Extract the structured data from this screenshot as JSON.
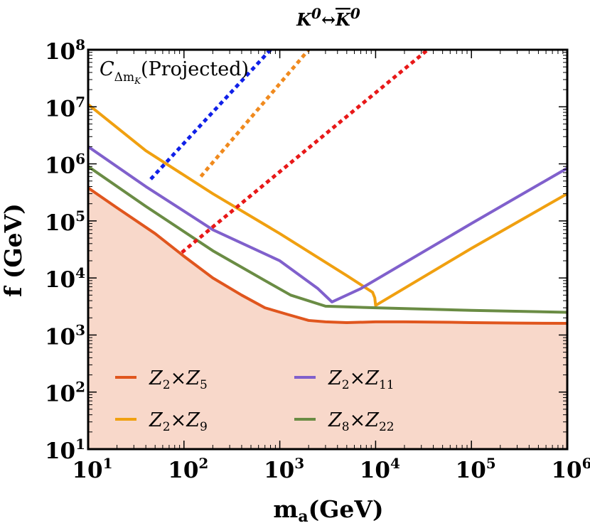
{
  "chart_data": {
    "type": "line",
    "title": "K0↔K̄0",
    "xlabel": "ma(GeV)",
    "ylabel": "f (GeV)",
    "xscale": "log",
    "yscale": "log",
    "xlim": [
      10,
      1000000
    ],
    "ylim": [
      10,
      100000000
    ],
    "x_ticks": [
      {
        "base": "10",
        "exp": "1",
        "value": 10
      },
      {
        "base": "10",
        "exp": "2",
        "value": 100
      },
      {
        "base": "10",
        "exp": "3",
        "value": 1000
      },
      {
        "base": "10",
        "exp": "4",
        "value": 10000
      },
      {
        "base": "10",
        "exp": "5",
        "value": 100000
      },
      {
        "base": "10",
        "exp": "6",
        "value": 1000000
      }
    ],
    "y_ticks": [
      {
        "base": "10",
        "exp": "1",
        "value": 10
      },
      {
        "base": "10",
        "exp": "2",
        "value": 100
      },
      {
        "base": "10",
        "exp": "3",
        "value": 1000
      },
      {
        "base": "10",
        "exp": "4",
        "value": 10000
      },
      {
        "base": "10",
        "exp": "5",
        "value": 100000
      },
      {
        "base": "10",
        "exp": "6",
        "value": 1000000
      },
      {
        "base": "10",
        "exp": "7",
        "value": 10000000
      },
      {
        "base": "10",
        "exp": "8",
        "value": 100000000
      }
    ],
    "annotation": {
      "text": "C",
      "subscript": "Δm",
      "subsub": "K",
      "suffix": "(Projected)"
    },
    "legend_placement": "bottom-left",
    "fill_color": "#f8d8ca",
    "series": [
      {
        "name": "Z2×Z5",
        "legend": {
          "a": "Z",
          "a_sub": "2",
          "b": "Z",
          "b_sub": "5"
        },
        "color": "#e0561e",
        "x": [
          10,
          20,
          50,
          100,
          200,
          400,
          700,
          1200,
          2000,
          3000,
          5000,
          10000,
          20000,
          50000,
          100000,
          300000,
          1000000
        ],
        "y": [
          380000,
          170000,
          60000,
          24000,
          10000,
          5000,
          3000,
          2300,
          1800,
          1700,
          1650,
          1700,
          1700,
          1680,
          1650,
          1620,
          1600
        ]
      },
      {
        "name": "Z2×Z9",
        "legend": {
          "a": "Z",
          "a_sub": "2",
          "b": "Z",
          "b_sub": "9"
        },
        "color": "#f0a010",
        "x": [
          10,
          40,
          200,
          1000,
          5000,
          9300,
          9800,
          10000,
          100000,
          1000000
        ],
        "y": [
          11000000,
          1700000,
          300000,
          60000,
          11000,
          5600,
          4500,
          3300,
          33000,
          300000
        ]
      },
      {
        "name": "Z2×Z11",
        "legend": {
          "a": "Z",
          "a_sub": "2",
          "b": "Z",
          "b_sub": "11"
        },
        "color": "#8060cc",
        "x": [
          10,
          40,
          200,
          1000,
          2500,
          3500,
          7000,
          100000,
          1000000
        ],
        "y": [
          2000000,
          400000,
          70000,
          20000,
          6500,
          3800,
          6500,
          90000,
          840000
        ]
      },
      {
        "name": "Z8×Z22",
        "legend": {
          "a": "Z",
          "a_sub": "8",
          "b": "Z",
          "b_sub": "22"
        },
        "color": "#6a8c44",
        "x": [
          10,
          40,
          200,
          700,
          1300,
          3000,
          10000,
          100000,
          1000000
        ],
        "y": [
          900000,
          180000,
          30000,
          9000,
          5000,
          3200,
          3000,
          2700,
          2500
        ]
      },
      {
        "name": "blue dotted",
        "color": "#1020e8",
        "dashed": true,
        "x": [
          45,
          800
        ],
        "y": [
          540000,
          100000000
        ]
      },
      {
        "name": "orange dotted",
        "color": "#f08a1e",
        "dashed": true,
        "x": [
          150,
          2000
        ],
        "y": [
          600000,
          100000000
        ]
      },
      {
        "name": "red dotted",
        "color": "#e81818",
        "dashed": true,
        "x": [
          95,
          35000
        ],
        "y": [
          28000,
          100000000
        ]
      }
    ]
  }
}
